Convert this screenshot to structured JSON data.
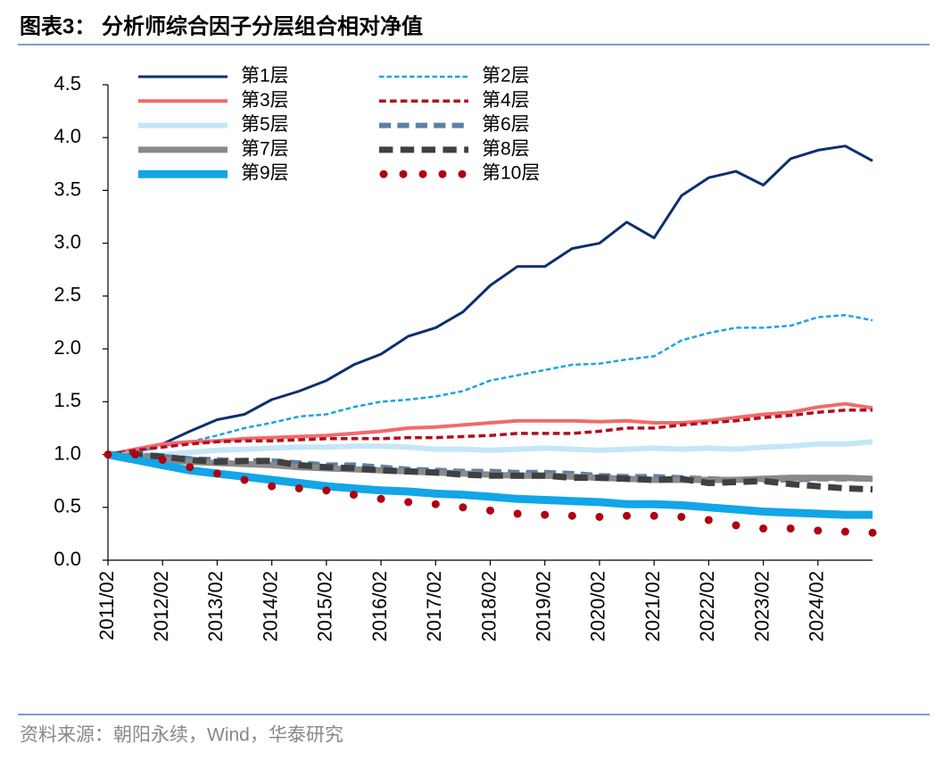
{
  "chart_data": {
    "type": "line",
    "title": "图表3：  分析师综合因子分层组合相对净值",
    "source": "资料来源：朝阳永续，Wind，华泰研究",
    "categories": [
      "2011/02",
      null,
      "2012/02",
      null,
      "2013/02",
      null,
      "2014/02",
      null,
      "2015/02",
      null,
      "2016/02",
      null,
      "2017/02",
      null,
      "2018/02",
      null,
      "2019/02",
      null,
      "2020/02",
      null,
      "2021/02",
      null,
      "2022/02",
      null,
      "2023/02",
      null,
      "2024/02",
      null,
      null
    ],
    "ylim": [
      0,
      4.5
    ],
    "yticks": [
      {
        "value": 0,
        "label": "0.0"
      },
      0.5,
      {
        "value": 1,
        "label": "1.0"
      },
      1.5,
      {
        "value": 2,
        "label": "2.0"
      },
      2.5,
      {
        "value": 3,
        "label": "3.0"
      },
      3.5,
      {
        "value": 4,
        "label": "4.0"
      },
      4.5
    ],
    "grid": false,
    "series": [
      {
        "name": "第1层",
        "color": "#0d2f6e",
        "style": "solid",
        "width": 3,
        "values": [
          1.0,
          1.03,
          1.1,
          1.22,
          1.33,
          1.38,
          1.52,
          1.6,
          1.7,
          1.85,
          1.95,
          2.12,
          2.2,
          2.35,
          2.6,
          2.78,
          2.78,
          2.95,
          3.0,
          3.2,
          3.05,
          3.45,
          3.62,
          3.68,
          3.55,
          3.8,
          3.88,
          3.92,
          3.78
        ]
      },
      {
        "name": "第2层",
        "color": "#1ba3e0",
        "style": "dashed",
        "width": 2.5,
        "values": [
          1.0,
          1.02,
          1.08,
          1.12,
          1.18,
          1.25,
          1.3,
          1.36,
          1.38,
          1.45,
          1.5,
          1.52,
          1.55,
          1.6,
          1.7,
          1.75,
          1.8,
          1.85,
          1.86,
          1.9,
          1.93,
          2.08,
          2.15,
          2.2,
          2.2,
          2.22,
          2.3,
          2.32,
          2.27
        ]
      },
      {
        "name": "第3层",
        "color": "#f26a6a",
        "style": "solid",
        "width": 4,
        "values": [
          1.0,
          1.05,
          1.1,
          1.12,
          1.13,
          1.15,
          1.16,
          1.17,
          1.18,
          1.2,
          1.22,
          1.25,
          1.26,
          1.28,
          1.3,
          1.32,
          1.32,
          1.32,
          1.31,
          1.32,
          1.3,
          1.3,
          1.32,
          1.35,
          1.38,
          1.4,
          1.45,
          1.48,
          1.44
        ]
      },
      {
        "name": "第4层",
        "color": "#b01020",
        "style": "dashed",
        "width": 3.5,
        "values": [
          1.0,
          1.04,
          1.07,
          1.1,
          1.12,
          1.13,
          1.13,
          1.14,
          1.15,
          1.15,
          1.15,
          1.16,
          1.16,
          1.17,
          1.18,
          1.2,
          1.2,
          1.2,
          1.22,
          1.25,
          1.25,
          1.28,
          1.3,
          1.32,
          1.35,
          1.37,
          1.4,
          1.42,
          1.42
        ]
      },
      {
        "name": "第5层",
        "color": "#c5e6f7",
        "style": "solid",
        "width": 6,
        "values": [
          1.0,
          1.0,
          1.0,
          1.02,
          1.04,
          1.05,
          1.06,
          1.07,
          1.07,
          1.08,
          1.08,
          1.07,
          1.05,
          1.05,
          1.04,
          1.05,
          1.06,
          1.05,
          1.04,
          1.05,
          1.06,
          1.05,
          1.06,
          1.05,
          1.07,
          1.08,
          1.1,
          1.1,
          1.12
        ]
      },
      {
        "name": "第6层",
        "color": "#5d7fa8",
        "style": "dashed",
        "width": 6,
        "values": [
          1.0,
          0.99,
          0.98,
          0.96,
          0.95,
          0.94,
          0.94,
          0.92,
          0.9,
          0.9,
          0.88,
          0.86,
          0.85,
          0.84,
          0.84,
          0.83,
          0.83,
          0.82,
          0.8,
          0.79,
          0.79,
          0.78,
          0.77,
          0.76,
          0.76,
          0.76,
          0.77,
          0.77,
          0.77
        ]
      },
      {
        "name": "第7层",
        "color": "#8a8a8a",
        "style": "solid",
        "width": 7,
        "values": [
          1.0,
          0.98,
          0.95,
          0.93,
          0.92,
          0.91,
          0.9,
          0.88,
          0.87,
          0.86,
          0.85,
          0.84,
          0.83,
          0.82,
          0.81,
          0.8,
          0.8,
          0.79,
          0.78,
          0.77,
          0.76,
          0.76,
          0.76,
          0.76,
          0.77,
          0.78,
          0.78,
          0.78,
          0.77
        ]
      },
      {
        "name": "第8层",
        "color": "#404040",
        "style": "dashed",
        "width": 7,
        "values": [
          1.0,
          1.0,
          0.98,
          0.95,
          0.93,
          0.94,
          0.94,
          0.9,
          0.88,
          0.87,
          0.85,
          0.84,
          0.83,
          0.81,
          0.8,
          0.8,
          0.8,
          0.78,
          0.78,
          0.77,
          0.76,
          0.77,
          0.73,
          0.74,
          0.75,
          0.72,
          0.7,
          0.68,
          0.67
        ]
      },
      {
        "name": "第9层",
        "color": "#12a5e8",
        "style": "solid",
        "width": 9,
        "values": [
          1.0,
          0.95,
          0.9,
          0.85,
          0.82,
          0.79,
          0.76,
          0.73,
          0.7,
          0.68,
          0.66,
          0.65,
          0.63,
          0.62,
          0.6,
          0.58,
          0.57,
          0.56,
          0.55,
          0.53,
          0.53,
          0.52,
          0.5,
          0.48,
          0.46,
          0.45,
          0.44,
          0.43,
          0.43
        ]
      },
      {
        "name": "第10层",
        "color": "#b00010",
        "style": "dotted",
        "width": 9,
        "values": [
          1.0,
          1.0,
          0.95,
          0.88,
          0.82,
          0.76,
          0.7,
          0.68,
          0.66,
          0.62,
          0.58,
          0.55,
          0.53,
          0.5,
          0.47,
          0.44,
          0.43,
          0.42,
          0.41,
          0.42,
          0.42,
          0.41,
          0.38,
          0.33,
          0.3,
          0.3,
          0.28,
          0.27,
          0.26
        ]
      }
    ]
  }
}
